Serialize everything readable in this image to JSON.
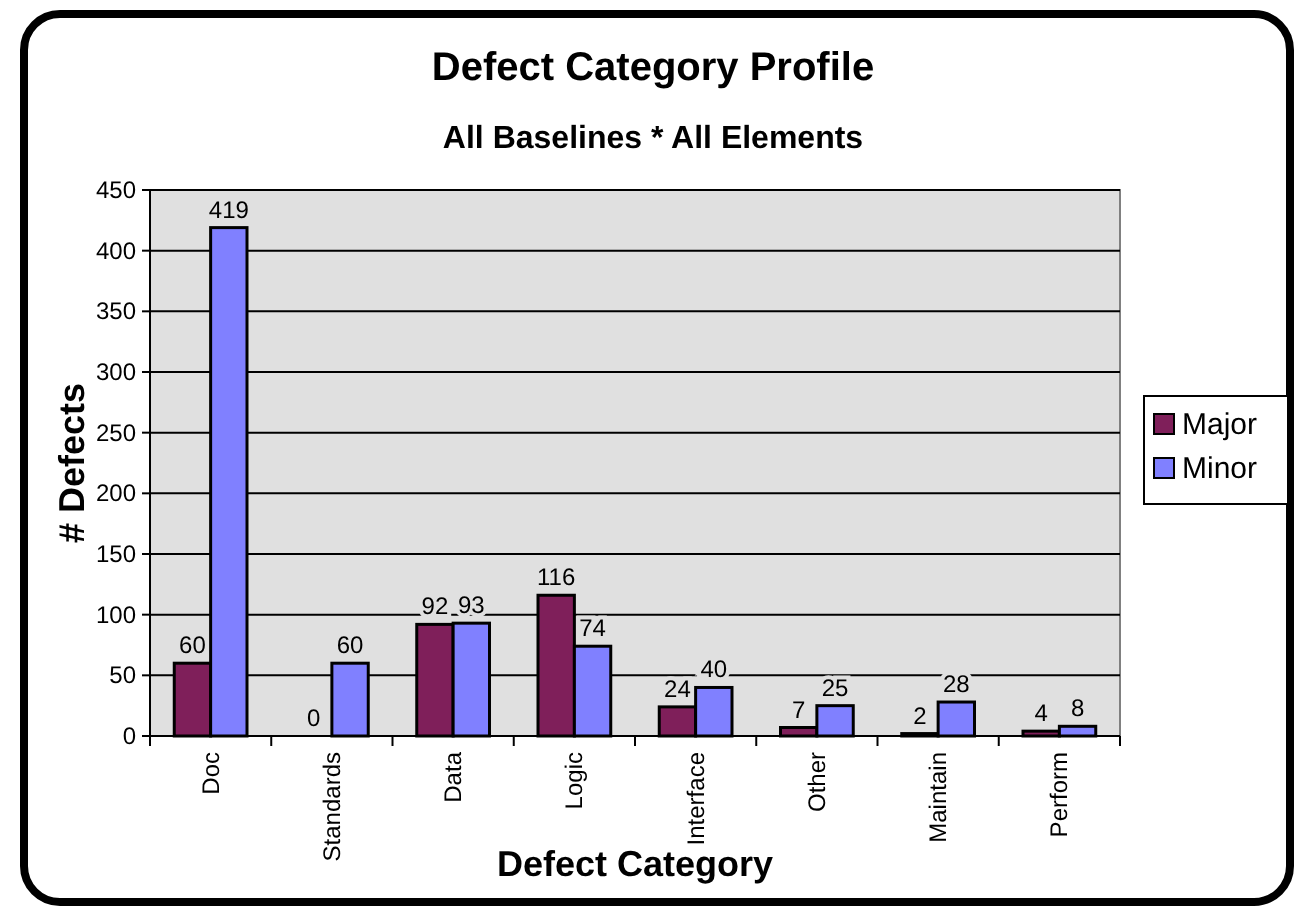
{
  "chart_data": {
    "type": "bar",
    "title": "Defect Category Profile",
    "subtitle": "All Baselines * All Elements",
    "xlabel": "Defect Category",
    "ylabel": "# Defects",
    "categories": [
      "Doc",
      "Standards",
      "Data",
      "Logic",
      "Interface",
      "Other",
      "Maintain",
      "Perform"
    ],
    "series": [
      {
        "name": "Major",
        "color": "#7f1f5a",
        "values": [
          60,
          0,
          92,
          116,
          24,
          7,
          2,
          4
        ]
      },
      {
        "name": "Minor",
        "color": "#8080ff",
        "values": [
          419,
          60,
          93,
          74,
          40,
          25,
          28,
          8
        ]
      }
    ],
    "ylim": [
      0,
      450
    ],
    "yticks": [
      0,
      50,
      100,
      150,
      200,
      250,
      300,
      350,
      400,
      450
    ],
    "grid": "y",
    "legend": "right",
    "data_labels": true
  }
}
